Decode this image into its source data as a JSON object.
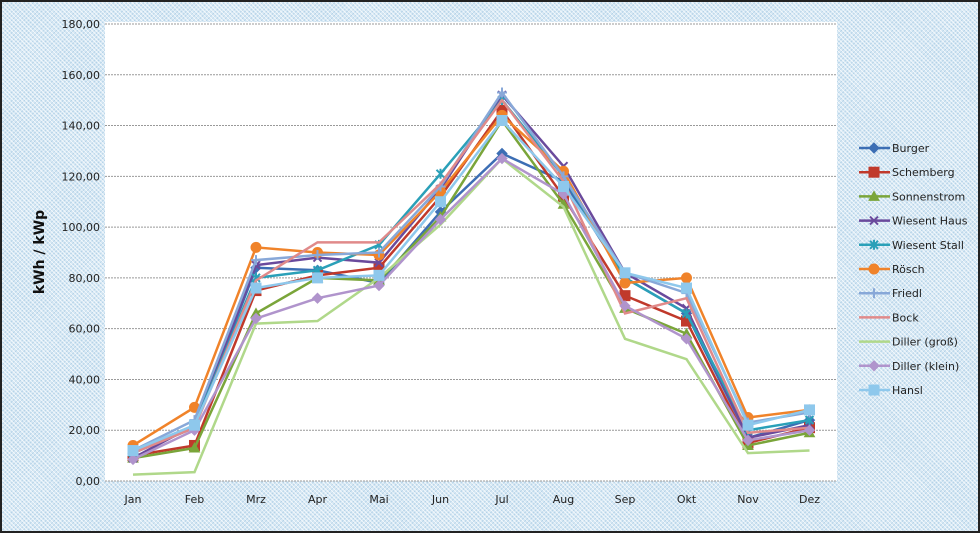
{
  "chart_data": {
    "type": "line",
    "title": "",
    "xlabel": "",
    "ylabel": "kWh / kWp",
    "ylim": [
      0,
      180
    ],
    "ytick_step": 20,
    "ytick_labels": [
      "0,00",
      "20,00",
      "40,00",
      "60,00",
      "80,00",
      "100,00",
      "120,00",
      "140,00",
      "160,00",
      "180,00"
    ],
    "grid": true,
    "legend_position": "right",
    "categories": [
      "Jan",
      "Feb",
      "Mrz",
      "Apr",
      "Mai",
      "Jun",
      "Jul",
      "Aug",
      "Sep",
      "Okt",
      "Nov",
      "Dez"
    ],
    "series": [
      {
        "name": "Burger",
        "color": "#3c6eb4",
        "marker": "diamond",
        "values": [
          11,
          21,
          84,
          83,
          78,
          106,
          129,
          118,
          80,
          66,
          17,
          24
        ]
      },
      {
        "name": "Schemberg",
        "color": "#c0392b",
        "marker": "square",
        "values": [
          10,
          14,
          75,
          81,
          84,
          112,
          146,
          112,
          73,
          63,
          15,
          21
        ]
      },
      {
        "name": "Sonnenstrom",
        "color": "#7aa53a",
        "marker": "triangle",
        "values": [
          9,
          13,
          66,
          80,
          79,
          104,
          142,
          109,
          68,
          58,
          14,
          19
        ]
      },
      {
        "name": "Wiesent Haus",
        "color": "#6a4a9c",
        "marker": "x",
        "values": [
          9,
          22,
          85,
          88,
          86,
          115,
          152,
          124,
          82,
          68,
          17,
          22
        ]
      },
      {
        "name": "Wiesent Stall",
        "color": "#2aa0b8",
        "marker": "star",
        "values": [
          11,
          22,
          80,
          83,
          93,
          121,
          150,
          120,
          80,
          66,
          20,
          24
        ]
      },
      {
        "name": "Rösch",
        "color": "#f0832a",
        "marker": "circle",
        "values": [
          14,
          29,
          92,
          90,
          89,
          114,
          144,
          122,
          78,
          80,
          25,
          28
        ]
      },
      {
        "name": "Friedl",
        "color": "#88a8d8",
        "marker": "plus",
        "values": [
          12,
          24,
          87,
          89,
          90,
          116,
          153,
          120,
          82,
          74,
          23,
          27
        ]
      },
      {
        "name": "Bock",
        "color": "#e08a8a",
        "marker": "none",
        "values": [
          11,
          21,
          79,
          94,
          94,
          117,
          150,
          118,
          66,
          72,
          19,
          21
        ]
      },
      {
        "name": "Diller (groß)",
        "color": "#b0d88a",
        "marker": "none",
        "values": [
          2.5,
          3.5,
          62,
          63,
          80,
          101,
          127,
          108,
          56,
          48,
          11,
          12
        ]
      },
      {
        "name": "Diller (klein)",
        "color": "#b094cc",
        "marker": "diamond",
        "values": [
          8.5,
          20,
          64,
          72,
          77,
          103,
          127,
          113,
          69,
          56,
          16,
          20
        ]
      },
      {
        "name": "Hansl",
        "color": "#8ec8ec",
        "marker": "square",
        "values": [
          12,
          22,
          76,
          80,
          81,
          110,
          142,
          116,
          82,
          76,
          22,
          28
        ]
      }
    ]
  }
}
